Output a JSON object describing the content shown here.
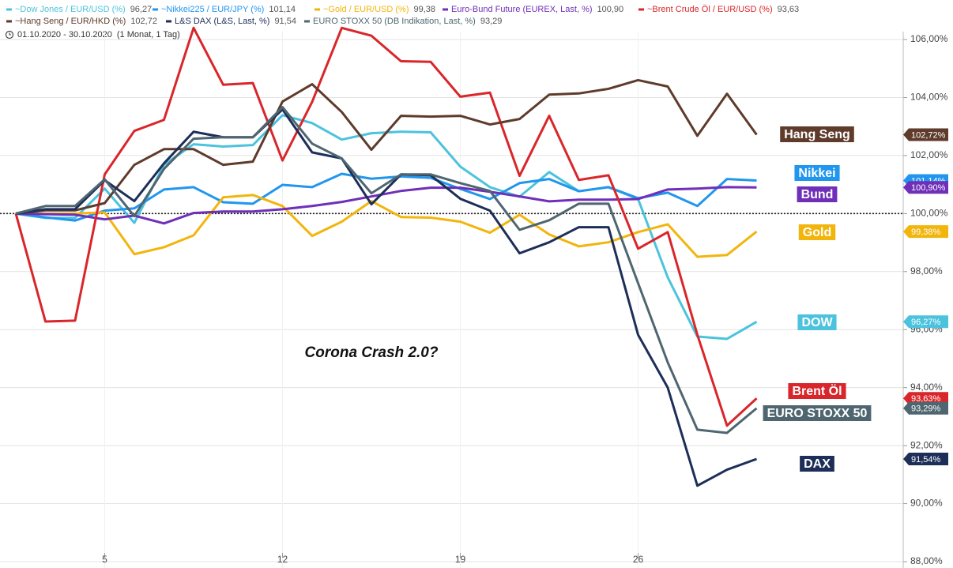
{
  "chart_data": {
    "type": "line",
    "period": "01.10.2020 - 30.10.2020",
    "period_note": "(1 Monat, 1 Tag)",
    "annotation": "Corona Crash 2.0?",
    "categories": [
      null,
      null,
      null,
      "5",
      null,
      null,
      null,
      null,
      null,
      "12",
      null,
      null,
      null,
      null,
      null,
      "19",
      null,
      null,
      null,
      null,
      null,
      "26",
      null,
      null,
      null,
      null
    ],
    "ylim": [
      88,
      106.3
    ],
    "yticks": [
      {
        "value": 88,
        "label": "88,00%"
      },
      {
        "value": 90,
        "label": "90,00%"
      },
      {
        "value": 92,
        "label": "92,00%"
      },
      {
        "value": 94,
        "label": "94,00%"
      },
      {
        "value": 96,
        "label": "96,00%"
      },
      {
        "value": 98,
        "label": "98,00%"
      },
      {
        "value": 100,
        "label": "100,00%"
      },
      {
        "value": 102,
        "label": "102,00%"
      },
      {
        "value": 104,
        "label": "104,00%"
      },
      {
        "value": 106,
        "label": "106,00%"
      }
    ],
    "reference_line": 100,
    "grid": true,
    "series": [
      {
        "name": "~Dow Jones / EUR/USD (%)",
        "legend_value": "96,27",
        "label": "DOW",
        "end_value": "96,27%",
        "color": "#4cc3dd",
        "values": [
          100,
          99.85,
          99.85,
          100.86,
          99.68,
          101.68,
          102.39,
          102.31,
          102.36,
          103.39,
          103.12,
          102.55,
          102.77,
          102.82,
          102.8,
          101.62,
          100.91,
          100.58,
          101.43,
          100.77,
          100.91,
          100.5,
          97.8,
          95.76,
          95.68,
          96.27
        ]
      },
      {
        "name": "~Nikkei225 / EUR/JPY (%)",
        "legend_value": "101,14",
        "label": "Nikkei",
        "end_value": "101,14%",
        "color": "#2196ee",
        "values": [
          100,
          99.87,
          99.76,
          100.1,
          100.18,
          100.83,
          100.91,
          100.39,
          100.34,
          100.99,
          100.91,
          101.37,
          101.2,
          101.28,
          101.23,
          100.85,
          100.5,
          101.05,
          101.19,
          100.77,
          100.91,
          100.53,
          100.72,
          100.26,
          101.19,
          101.14
        ]
      },
      {
        "name": "~Gold / EUR/USD (%)",
        "legend_value": "99,38",
        "label": "Gold",
        "end_value": "99,38%",
        "color": "#f2b50c",
        "values": [
          100,
          100,
          100,
          100.04,
          98.6,
          98.84,
          99.25,
          100.56,
          100.64,
          100.26,
          99.23,
          99.72,
          100.43,
          99.88,
          99.86,
          99.72,
          99.34,
          99.96,
          99.28,
          98.87,
          99.01,
          99.36,
          99.63,
          98.51,
          98.57,
          99.38
        ]
      },
      {
        "name": "Euro-Bund Future (EUREX, Last, %)",
        "legend_value": "100,90",
        "label": "Bund",
        "end_value": "100,90%",
        "color": "#6f2fb8",
        "values": [
          100,
          99.98,
          99.96,
          99.8,
          99.93,
          99.66,
          100.02,
          100.07,
          100.07,
          100.15,
          100.26,
          100.4,
          100.59,
          100.78,
          100.89,
          100.89,
          100.75,
          100.59,
          100.42,
          100.48,
          100.48,
          100.5,
          100.83,
          100.86,
          100.91,
          100.9
        ]
      },
      {
        "name": "~Brent Crude Öl / EUR/USD (%)",
        "legend_value": "93,63",
        "label": "Brent Öl",
        "end_value": "93,63%",
        "color": "#d9262a",
        "values": [
          100,
          96.28,
          96.31,
          101.35,
          102.85,
          103.23,
          106.4,
          104.44,
          104.5,
          101.83,
          103.85,
          106.4,
          106.13,
          105.25,
          105.23,
          104.03,
          104.17,
          101.3,
          103.37,
          101.16,
          101.32,
          98.79,
          99.36,
          95.82,
          92.69,
          93.63
        ]
      },
      {
        "name": "~Hang Seng / EUR/HKD (%)",
        "legend_value": "102,72",
        "label": "Hang Seng",
        "end_value": "102,72%",
        "color": "#5e3b2b",
        "values": [
          100,
          100.11,
          100.11,
          100.36,
          101.68,
          102.22,
          102.22,
          101.68,
          101.79,
          103.86,
          104.46,
          103.5,
          102.2,
          103.37,
          103.34,
          103.37,
          103.07,
          103.26,
          104.1,
          104.14,
          104.3,
          104.6,
          104.38,
          102.68,
          104.13,
          102.72
        ]
      },
      {
        "name": "L&S DAX (L&S, Last, %)",
        "legend_value": "91,54",
        "label": "DAX",
        "end_value": "91,54%",
        "color": "#1d2f58",
        "values": [
          100,
          100.15,
          100.15,
          101.15,
          100.43,
          101.73,
          102.82,
          102.63,
          102.63,
          103.59,
          102.11,
          101.9,
          100.32,
          101.35,
          101.32,
          100.51,
          100.1,
          98.63,
          99.01,
          99.53,
          99.53,
          95.82,
          94.0,
          90.62,
          91.17,
          91.54
        ]
      },
      {
        "name": "EURO STOXX 50 (DB Indikation, Last, %)",
        "legend_value": "93,29",
        "label": "EURO STOXX 50",
        "end_value": "93,29%",
        "color": "#4f6670",
        "values": [
          100,
          100.26,
          100.26,
          101.18,
          99.91,
          101.54,
          102.58,
          102.63,
          102.63,
          103.67,
          102.41,
          101.9,
          100.7,
          101.35,
          101.35,
          101.05,
          100.78,
          99.44,
          99.77,
          100.34,
          100.34,
          97.6,
          94.87,
          92.55,
          92.44,
          93.29
        ]
      }
    ]
  }
}
